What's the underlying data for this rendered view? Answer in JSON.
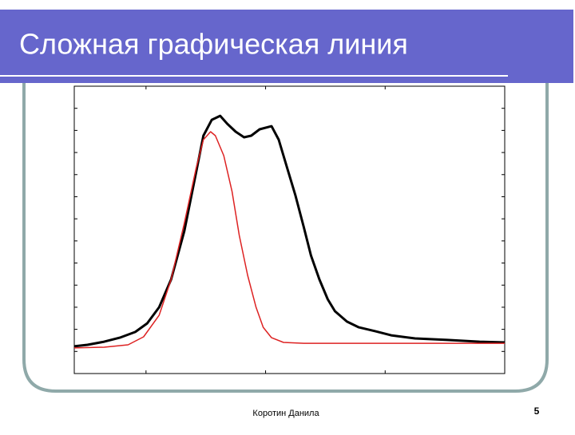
{
  "header": {
    "title": "Сложная графическая линия"
  },
  "chart_data": {
    "type": "line",
    "xlim": [
      0.4,
      4
    ],
    "xticks": [
      1,
      2,
      3,
      4
    ],
    "ylim": [
      0,
      13
    ],
    "yticks": [
      0,
      1,
      2,
      3,
      4,
      5,
      6,
      7,
      8,
      9,
      10,
      11,
      12,
      13
    ],
    "series": [
      {
        "color": "#000000",
        "x": [
          0.4,
          0.51,
          0.65,
          0.78,
          0.91,
          1.01,
          1.11,
          1.21,
          1.32,
          1.42,
          1.48,
          1.55,
          1.62,
          1.68,
          1.75,
          1.82,
          1.88,
          1.95,
          2.05,
          2.11,
          2.18,
          2.25,
          2.32,
          2.38,
          2.45,
          2.52,
          2.58,
          2.68,
          2.78,
          2.92,
          3.05,
          3.25,
          3.52,
          3.79,
          4.0
        ],
        "values": [
          1.23,
          1.3,
          1.44,
          1.62,
          1.88,
          2.27,
          3.0,
          4.26,
          6.43,
          9.13,
          10.76,
          11.48,
          11.66,
          11.3,
          10.94,
          10.69,
          10.76,
          11.05,
          11.19,
          10.58,
          9.31,
          8.05,
          6.61,
          5.34,
          4.26,
          3.36,
          2.82,
          2.35,
          2.09,
          1.91,
          1.73,
          1.59,
          1.52,
          1.44,
          1.41
        ]
      },
      {
        "color": "#dd2222",
        "x": [
          0.4,
          0.65,
          0.85,
          0.98,
          1.11,
          1.21,
          1.32,
          1.42,
          1.48,
          1.54,
          1.58,
          1.65,
          1.72,
          1.78,
          1.85,
          1.92,
          1.98,
          2.05,
          2.15,
          2.32,
          4.0
        ],
        "values": [
          1.16,
          1.19,
          1.3,
          1.66,
          2.64,
          4.26,
          6.79,
          9.31,
          10.58,
          10.94,
          10.76,
          9.86,
          8.23,
          6.25,
          4.44,
          3.0,
          2.09,
          1.62,
          1.41,
          1.37,
          1.37
        ]
      }
    ]
  },
  "footer": {
    "author": "Коротин Данила",
    "page": "5"
  }
}
